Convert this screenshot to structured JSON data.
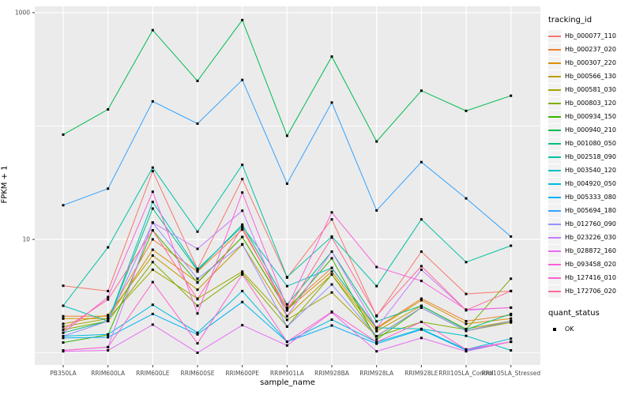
{
  "colors": {
    "background": "#FFFFFF",
    "panel_bg": "#EBEBEB",
    "grid": "#FFFFFF",
    "tick_text": "#4D4D4D",
    "axis_text": "#000000",
    "legend_key_bg": "#F2F2F2",
    "point": "#000000"
  },
  "chart_data": {
    "type": "line",
    "title": "",
    "xlabel": "sample_name",
    "ylabel": "FPKM + 1",
    "y_scale": "log10",
    "ylim": [
      1,
      1000
    ],
    "y_major_breaks": [
      10,
      1000
    ],
    "y_minor_breaks": [
      1,
      100
    ],
    "y_tick_labels": [
      "1000",
      "10"
    ],
    "grid": "on",
    "legend_position": "right",
    "point_marker": "small-black-square",
    "categories": [
      "PB350LA",
      "RRIM600LA",
      "RRIM600LE",
      "RRIM600SE",
      "RRIM600PE",
      "RRIM901LA",
      "RRIM928BA",
      "RRIM928LA",
      "RRIM928LE",
      "RRII105LA_Control",
      "RRII105LA_Stressed"
    ],
    "series": [
      {
        "name": "Hb_000077_110",
        "color": "#F8766D",
        "values": [
          3.9,
          3.5,
          40,
          5.5,
          34,
          4.6,
          15,
          2.1,
          7.8,
          3.3,
          3.5
        ]
      },
      {
        "name": "Hb_000237_020",
        "color": "#EA8331",
        "values": [
          2.1,
          2.1,
          10,
          5.2,
          12.2,
          2.5,
          5.6,
          1.66,
          3.0,
          1.9,
          2.15
        ]
      },
      {
        "name": "Hb_000307_220",
        "color": "#D89000",
        "values": [
          2.0,
          2.0,
          8.1,
          4.2,
          10.5,
          2.4,
          5.2,
          1.63,
          2.9,
          1.8,
          2.0
        ]
      },
      {
        "name": "Hb_000566_130",
        "color": "#C09B00",
        "values": [
          1.8,
          2.15,
          7.2,
          3.6,
          9.0,
          2.1,
          4.9,
          1.55,
          2.6,
          1.62,
          1.9
        ]
      },
      {
        "name": "Hb_000581_030",
        "color": "#A3A500",
        "values": [
          1.7,
          2.0,
          5.4,
          3.0,
          5.2,
          1.95,
          3.4,
          1.4,
          2.5,
          1.56,
          1.85
        ]
      },
      {
        "name": "Hb_000803_120",
        "color": "#7CAE00",
        "values": [
          1.6,
          1.9,
          6.3,
          2.6,
          5.0,
          1.7,
          4.9,
          1.39,
          1.87,
          1.6,
          4.5
        ]
      },
      {
        "name": "Hb_000934_150",
        "color": "#39B600",
        "values": [
          1.23,
          1.44,
          12,
          4.15,
          10.5,
          2.36,
          6.8,
          1.31,
          2.5,
          1.56,
          1.9
        ]
      },
      {
        "name": "Hb_000940_210",
        "color": "#00BB4E",
        "values": [
          84,
          140,
          700,
          250,
          860,
          82,
          410,
          73,
          205,
          136,
          185
        ]
      },
      {
        "name": "Hb_001080_050",
        "color": "#00BF7D",
        "values": [
          1.5,
          1.9,
          18.7,
          5.3,
          13.5,
          2.67,
          7.8,
          1.89,
          2.6,
          1.6,
          2.2
        ]
      },
      {
        "name": "Hb_002518_090",
        "color": "#00C1A3",
        "values": [
          2.6,
          8.5,
          43,
          11.7,
          45.5,
          4.65,
          10.6,
          3.87,
          15,
          6.3,
          8.8
        ]
      },
      {
        "name": "Hb_003540_120",
        "color": "#00BFC4",
        "values": [
          2.6,
          1.9,
          21.4,
          5.45,
          13,
          3.87,
          5.6,
          1.66,
          1.62,
          1.41,
          1.05
        ]
      },
      {
        "name": "Hb_004920_050",
        "color": "#00BAE0",
        "values": [
          1.4,
          1.45,
          2.65,
          1.5,
          3.5,
          1.25,
          1.96,
          1.24,
          1.62,
          1.07,
          1.33
        ]
      },
      {
        "name": "Hb_005333_080",
        "color": "#00B0F6",
        "values": [
          1.35,
          1.37,
          2.2,
          1.45,
          2.8,
          1.25,
          1.74,
          1.2,
          1.6,
          1.05,
          1.25
        ]
      },
      {
        "name": "Hb_005694_180",
        "color": "#35A2FF",
        "values": [
          20,
          28,
          165,
          105,
          255,
          31,
          161,
          18,
          48,
          23,
          10.6
        ]
      },
      {
        "name": "Hb_012760_090",
        "color": "#9590FF",
        "values": [
          1.4,
          1.9,
          14,
          4.5,
          9.05,
          1.7,
          4.0,
          1.39,
          2.5,
          1.56,
          1.89
        ]
      },
      {
        "name": "Hb_023226_030",
        "color": "#C77CFF",
        "values": [
          1.05,
          1.12,
          14.1,
          8.25,
          17.9,
          2.1,
          7.8,
          1.66,
          5.4,
          2.37,
          2.5
        ]
      },
      {
        "name": "Hb_028872_160",
        "color": "#E76BF3",
        "values": [
          1.03,
          1.05,
          1.77,
          1.0,
          1.75,
          1.16,
          2.27,
          1.03,
          1.35,
          1.03,
          1.25
        ]
      },
      {
        "name": "Hb_093458_020",
        "color": "#FA62DB",
        "values": [
          1.5,
          3.1,
          26.3,
          2.22,
          25.9,
          2.5,
          17.3,
          5.7,
          4.3,
          2.4,
          2.5
        ]
      },
      {
        "name": "Hb_127416_010",
        "color": "#FF61CC",
        "values": [
          1.05,
          1.12,
          4.2,
          1.21,
          4.9,
          1.25,
          2.3,
          1.24,
          1.87,
          1.07,
          1.25
        ]
      },
      {
        "name": "Hb_172706_020",
        "color": "#FF6A98",
        "values": [
          1.6,
          2.95,
          12,
          2.97,
          12.8,
          2.36,
          10.4,
          2.13,
          5.8,
          2.37,
          3.5
        ]
      }
    ],
    "legend": {
      "color_title": "tracking_id",
      "shape_title": "quant_status",
      "shape_items": [
        {
          "label": "OK",
          "marker": "black-square"
        }
      ]
    }
  }
}
